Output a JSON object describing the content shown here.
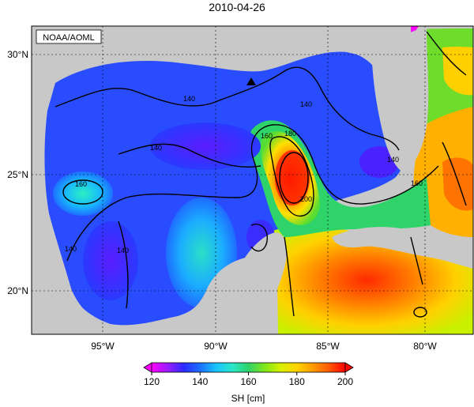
{
  "map": {
    "title": "2010-04-26",
    "source_label": "NOAA/AOML",
    "lat_ticks": [
      "30°N",
      "25°N",
      "20°N"
    ],
    "lon_ticks": [
      "95°W",
      "90°W",
      "85°W",
      "80°W"
    ],
    "contour_labels": [
      "140",
      "140",
      "140",
      "140",
      "160",
      "180",
      "200",
      "160",
      "140",
      "140",
      "160"
    ],
    "colorbar": {
      "label": "SH [cm]",
      "ticks": [
        "120",
        "140",
        "160",
        "180",
        "200"
      ],
      "colors": [
        "#ff00ff",
        "#9b1cff",
        "#2a2aff",
        "#1d6fff",
        "#19c3ff",
        "#2ae6c8",
        "#2ed36a",
        "#7fe61a",
        "#d8f000",
        "#ffd400",
        "#ff9a00",
        "#ff5a00",
        "#ff0000"
      ]
    },
    "colors": {
      "land": "#c8c8c8",
      "frame": "#000000"
    },
    "marker_icon": "triangle-marker-icon"
  }
}
